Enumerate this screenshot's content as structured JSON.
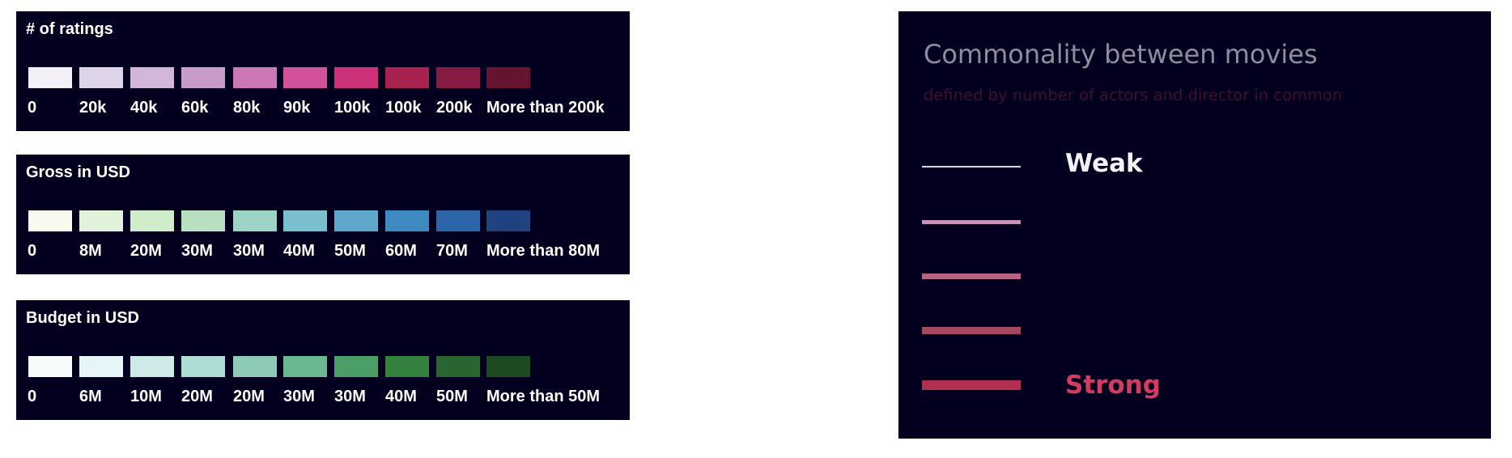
{
  "chart_data": [
    {
      "type": "legend",
      "title": "# of ratings",
      "categories": [
        "0",
        "20k",
        "40k",
        "60k",
        "80k",
        "90k",
        "100k",
        "100k",
        "200k",
        "More than 200k"
      ],
      "colors": [
        "#f4f0f8",
        "#ddd4e8",
        "#d3b7d8",
        "#c79cc9",
        "#cc78b7",
        "#d1519a",
        "#cb3277",
        "#a8224f",
        "#861c43",
        "#66132f"
      ]
    },
    {
      "type": "legend",
      "title": "Gross in USD",
      "categories": [
        "0",
        "8M",
        "20M",
        "30M",
        "30M",
        "40M",
        "50M",
        "60M",
        "70M",
        "More than 80M"
      ],
      "colors": [
        "#f7fbef",
        "#e1f1da",
        "#d0ecca",
        "#b8e0c0",
        "#9dd3c5",
        "#7bbfcf",
        "#5da8cb",
        "#3f8ac0",
        "#2c66a8",
        "#1f4380"
      ]
    },
    {
      "type": "legend",
      "title": "Budget in USD",
      "categories": [
        "0",
        "6M",
        "10M",
        "20M",
        "20M",
        "30M",
        "30M",
        "40M",
        "50M",
        "More than 50M"
      ],
      "colors": [
        "#f7fcfb",
        "#e6f5f8",
        "#cfebe8",
        "#aeddd5",
        "#8ecab7",
        "#6ab88f",
        "#4b9e67",
        "#34803f",
        "#296530",
        "#1b4a23"
      ]
    },
    {
      "type": "legend",
      "title": "Commonality between movies",
      "subtitle": "defined by number of actors and director in common",
      "labels": {
        "weak": "Weak",
        "strong": "Strong"
      },
      "levels": [
        {
          "label": "Weak",
          "color": "#d8d8e4",
          "weight": 1
        },
        {
          "label": "",
          "color": "#c993b7",
          "weight": 2
        },
        {
          "label": "",
          "color": "#b66383",
          "weight": 3
        },
        {
          "label": "",
          "color": "#a4485f",
          "weight": 4
        },
        {
          "label": "Strong",
          "color": "#b22f4f",
          "weight": 5
        }
      ],
      "label_colors": {
        "weak": "#f1f1f6",
        "strong": "#d13c60"
      }
    }
  ]
}
